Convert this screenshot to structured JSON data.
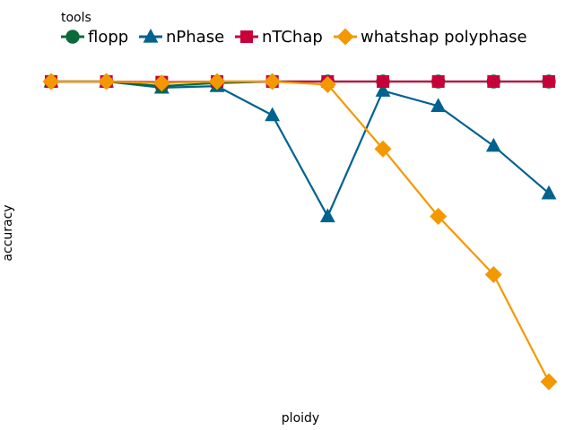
{
  "chart_data": {
    "type": "line",
    "xlabel": "ploidy",
    "ylabel": "accuracy",
    "legend_title": "tools",
    "legend_position": "top-left",
    "x": [
      1,
      2,
      3,
      4,
      5,
      6,
      7,
      8,
      9,
      10
    ],
    "ylim": [
      0,
      1
    ],
    "grid": false,
    "series": [
      {
        "name": "flopp",
        "color": "#0a6b3a",
        "marker": "circle",
        "values": [
          1.0,
          1.0,
          0.985,
          0.995,
          1.0,
          1.0,
          1.0,
          1.0,
          1.0,
          1.0
        ]
      },
      {
        "name": "nPhase",
        "color": "#00628f",
        "marker": "triangle",
        "values": [
          1.0,
          1.0,
          0.98,
          0.985,
          0.89,
          0.56,
          0.97,
          0.92,
          0.79,
          0.635
        ]
      },
      {
        "name": "nTChap",
        "color": "#c8003a",
        "marker": "square",
        "values": [
          1.0,
          1.0,
          0.998,
          1.0,
          1.0,
          1.0,
          1.0,
          1.0,
          1.0,
          1.0
        ]
      },
      {
        "name": "whatshap polyphase",
        "color": "#f49800",
        "marker": "diamond",
        "values": [
          1.0,
          1.0,
          0.995,
          1.0,
          1.0,
          0.99,
          0.78,
          0.56,
          0.37,
          0.02
        ]
      }
    ]
  }
}
